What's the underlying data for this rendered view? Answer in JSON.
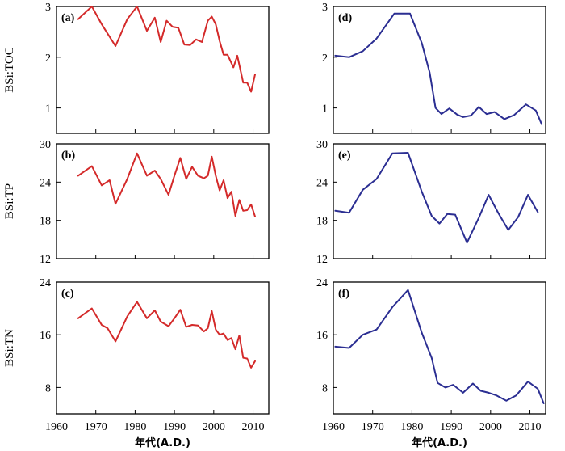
{
  "chart_data": [
    {
      "type": "line",
      "panel_label": "(a)",
      "ylabel": "BSi:TOC",
      "xlabel": "",
      "xlim": [
        1960,
        2014
      ],
      "ylim": [
        0.5,
        3
      ],
      "xticks": [
        1960,
        1970,
        1980,
        1990,
        2000,
        2010
      ],
      "yticks": [
        1,
        2,
        3
      ],
      "xtick_labels_shown": false,
      "color": "#d42a2a",
      "x": [
        1965.5,
        1969,
        1971.5,
        1975,
        1978,
        1980.5,
        1983,
        1985,
        1986.5,
        1988,
        1989.5,
        1991,
        1992.5,
        1994,
        1995.5,
        1997,
        1998.5,
        1999.5,
        2000.5,
        2001.5,
        2002.5,
        2003.5,
        2005,
        2006,
        2007.5,
        2008.5,
        2009.5,
        2010.5
      ],
      "y": [
        2.75,
        3.0,
        2.65,
        2.22,
        2.75,
        3.0,
        2.52,
        2.78,
        2.3,
        2.72,
        2.6,
        2.58,
        2.25,
        2.24,
        2.35,
        2.3,
        2.72,
        2.8,
        2.65,
        2.32,
        2.05,
        2.05,
        1.8,
        2.03,
        1.5,
        1.5,
        1.32,
        1.66
      ]
    },
    {
      "type": "line",
      "panel_label": "(b)",
      "ylabel": "BSi:TP",
      "xlabel": "",
      "xlim": [
        1960,
        2014
      ],
      "ylim": [
        12,
        30
      ],
      "xticks": [
        1960,
        1970,
        1980,
        1990,
        2000,
        2010
      ],
      "yticks": [
        12,
        18,
        24,
        30
      ],
      "xtick_labels_shown": false,
      "color": "#d42a2a",
      "x": [
        1965.5,
        1969,
        1971.5,
        1973.5,
        1975,
        1978,
        1980.5,
        1983,
        1985,
        1986.5,
        1988.5,
        1990,
        1991.5,
        1993,
        1994.5,
        1996,
        1997.5,
        1998.5,
        1999.5,
        2000.5,
        2001.5,
        2002.5,
        2003.5,
        2004.5,
        2005.5,
        2006.5,
        2007.5,
        2008.5,
        2009.5,
        2010.5
      ],
      "y": [
        25.0,
        26.5,
        23.5,
        24.3,
        20.6,
        24.5,
        28.5,
        25.0,
        25.8,
        24.5,
        22.0,
        25.0,
        27.8,
        24.5,
        26.4,
        25.0,
        24.6,
        25.0,
        28.0,
        25.0,
        22.7,
        24.3,
        21.5,
        22.5,
        18.7,
        21.2,
        19.5,
        19.6,
        20.5,
        18.6
      ]
    },
    {
      "type": "line",
      "panel_label": "(c)",
      "ylabel": "BSi:TN",
      "xlabel": "年代(A.D.)",
      "xlim": [
        1960,
        2014
      ],
      "ylim": [
        4,
        24
      ],
      "xticks": [
        1960,
        1970,
        1980,
        1990,
        2000,
        2010
      ],
      "yticks": [
        8,
        16,
        24
      ],
      "xtick_labels_shown": true,
      "color": "#d42a2a",
      "x": [
        1965.5,
        1969,
        1971.5,
        1973,
        1975,
        1978,
        1980.5,
        1983,
        1985,
        1986.5,
        1988.5,
        1990,
        1991.5,
        1993,
        1994.5,
        1996,
        1997.5,
        1998.5,
        1999.5,
        2000.5,
        2001.5,
        2002.5,
        2003.5,
        2004.5,
        2005.5,
        2006.5,
        2007.5,
        2008.5,
        2009.5,
        2010.5
      ],
      "y": [
        18.5,
        20.0,
        17.5,
        17.0,
        15.0,
        18.8,
        21.0,
        18.5,
        19.7,
        18.0,
        17.3,
        18.5,
        19.8,
        17.2,
        17.5,
        17.4,
        16.5,
        17.0,
        19.6,
        16.8,
        16.0,
        16.2,
        15.2,
        15.5,
        13.8,
        15.9,
        12.5,
        12.4,
        11.0,
        12.0
      ]
    },
    {
      "type": "line",
      "panel_label": "(d)",
      "ylabel": "",
      "xlabel": "",
      "xlim": [
        1960,
        2014
      ],
      "ylim": [
        0.5,
        3
      ],
      "xticks": [
        1960,
        1970,
        1980,
        1990,
        2000,
        2010
      ],
      "yticks": [
        1,
        2,
        3
      ],
      "xtick_labels_shown": false,
      "color": "#2b2e92",
      "x": [
        1960.5,
        1964,
        1967.5,
        1971,
        1975.5,
        1979.5,
        1982.5,
        1984.5,
        1986,
        1987.5,
        1989.5,
        1991.5,
        1993,
        1995,
        1997,
        1999,
        2001,
        2003.5,
        2006,
        2009,
        2011.5,
        2013
      ],
      "y": [
        2.03,
        2.0,
        2.12,
        2.37,
        2.86,
        2.86,
        2.28,
        1.7,
        1.0,
        0.88,
        0.99,
        0.87,
        0.82,
        0.85,
        1.02,
        0.88,
        0.92,
        0.78,
        0.86,
        1.07,
        0.95,
        0.68
      ]
    },
    {
      "type": "line",
      "panel_label": "(e)",
      "ylabel": "",
      "xlabel": "",
      "xlim": [
        1960,
        2014
      ],
      "ylim": [
        12,
        30
      ],
      "xticks": [
        1960,
        1970,
        1980,
        1990,
        2000,
        2010
      ],
      "yticks": [
        12,
        18,
        24,
        30
      ],
      "xtick_labels_shown": false,
      "color": "#2b2e92",
      "x": [
        1960.5,
        1964,
        1967.5,
        1971,
        1975,
        1979,
        1982.5,
        1985,
        1987,
        1989,
        1991,
        1994,
        1997,
        1999.5,
        2002,
        2004.5,
        2007,
        2009.5,
        2012
      ],
      "y": [
        19.5,
        19.2,
        22.8,
        24.5,
        28.5,
        28.6,
        22.5,
        18.7,
        17.5,
        19.0,
        18.9,
        14.5,
        18.4,
        22.0,
        19.1,
        16.5,
        18.5,
        22.0,
        19.3
      ]
    },
    {
      "type": "line",
      "panel_label": "(f)",
      "ylabel": "",
      "xlabel": "年代(A.D.)",
      "xlim": [
        1960,
        2014
      ],
      "ylim": [
        4,
        24
      ],
      "xticks": [
        1960,
        1970,
        1980,
        1990,
        2000,
        2010
      ],
      "yticks": [
        8,
        16,
        24
      ],
      "xtick_labels_shown": true,
      "color": "#2b2e92",
      "x": [
        1960.5,
        1964,
        1967.5,
        1971,
        1975,
        1979,
        1982.5,
        1985,
        1986.5,
        1988.5,
        1990.5,
        1993,
        1995.5,
        1997.5,
        1999.5,
        2001.5,
        2004,
        2006.5,
        2009.5,
        2012,
        2013.5
      ],
      "y": [
        14.2,
        14.0,
        16.0,
        16.8,
        20.2,
        22.8,
        16.3,
        12.5,
        8.7,
        8.0,
        8.4,
        7.2,
        8.6,
        7.5,
        7.2,
        6.8,
        6.0,
        6.8,
        8.9,
        7.8,
        5.6
      ]
    }
  ]
}
